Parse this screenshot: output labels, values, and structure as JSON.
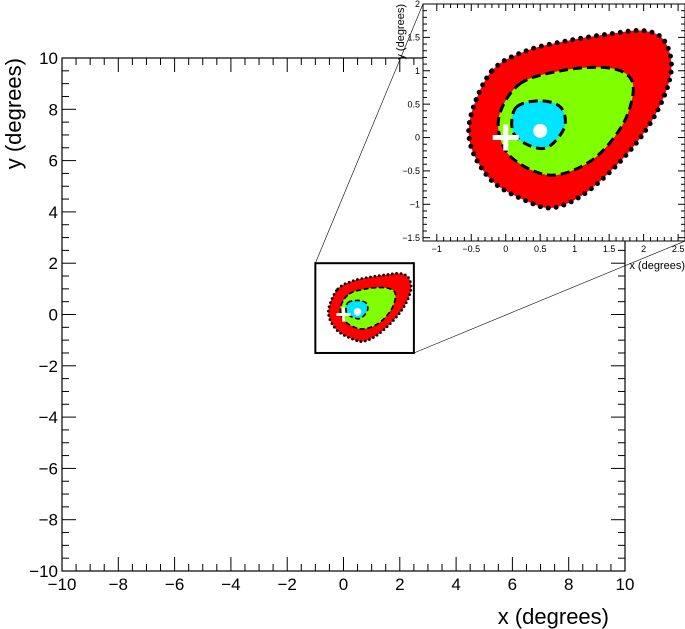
{
  "chart_data": [
    {
      "type": "contour",
      "role": "main",
      "xlabel": "x (degrees)",
      "ylabel": "y (degrees)",
      "xlim": [
        -10,
        10
      ],
      "ylim": [
        -10,
        10
      ],
      "x_ticks": [
        "−10",
        "−8",
        "−6",
        "−4",
        "−2",
        "0",
        "2",
        "4",
        "6",
        "8",
        "10"
      ],
      "y_ticks": [
        "−10",
        "−8",
        "−6",
        "−4",
        "−2",
        "0",
        "2",
        "4",
        "6",
        "8",
        "10"
      ],
      "x_tick_values": [
        -10,
        -8,
        -6,
        -4,
        -2,
        0,
        2,
        4,
        6,
        8,
        10
      ],
      "y_tick_values": [
        -10,
        -8,
        -6,
        -4,
        -2,
        0,
        2,
        4,
        6,
        8,
        10
      ],
      "grid": false,
      "zoom_box": {
        "x": [
          -1,
          2.5
        ],
        "y": [
          -1.5,
          2
        ]
      },
      "regions": [
        {
          "level": "outer",
          "color": "#ff0000",
          "border": "dotted",
          "points": [
            [
              -0.2,
              1.0
            ],
            [
              0.3,
              1.3
            ],
            [
              0.9,
              1.45
            ],
            [
              1.5,
              1.55
            ],
            [
              2.0,
              1.6
            ],
            [
              2.3,
              1.45
            ],
            [
              2.4,
              1.0
            ],
            [
              2.2,
              0.4
            ],
            [
              1.8,
              -0.2
            ],
            [
              1.2,
              -0.8
            ],
            [
              0.7,
              -1.05
            ],
            [
              0.3,
              -0.95
            ],
            [
              -0.2,
              -0.65
            ],
            [
              -0.5,
              -0.15
            ],
            [
              -0.5,
              0.35
            ]
          ]
        },
        {
          "level": "middle",
          "color": "#80ff00",
          "border": "dashed",
          "points": [
            [
              0.2,
              0.8
            ],
            [
              0.8,
              1.0
            ],
            [
              1.4,
              1.05
            ],
            [
              1.75,
              0.95
            ],
            [
              1.85,
              0.7
            ],
            [
              1.7,
              0.2
            ],
            [
              1.3,
              -0.3
            ],
            [
              0.8,
              -0.55
            ],
            [
              0.4,
              -0.5
            ],
            [
              0.0,
              -0.2
            ],
            [
              -0.1,
              0.3
            ]
          ]
        },
        {
          "level": "inner",
          "color": "#00e5ff",
          "border": "dashed",
          "points": [
            [
              0.15,
              0.45
            ],
            [
              0.5,
              0.55
            ],
            [
              0.8,
              0.45
            ],
            [
              0.85,
              0.15
            ],
            [
              0.6,
              -0.15
            ],
            [
              0.3,
              -0.1
            ],
            [
              0.1,
              0.1
            ]
          ]
        }
      ],
      "markers": [
        {
          "type": "circle",
          "color": "#ffffff",
          "x": 0.5,
          "y": 0.1
        },
        {
          "type": "cross",
          "color": "#ffffff",
          "x": 0.0,
          "y": 0.0
        }
      ]
    },
    {
      "type": "contour",
      "role": "inset-zoom",
      "xlabel": "x (degrees)",
      "ylabel": "y (degrees)",
      "xlim": [
        -1.2,
        2.6
      ],
      "ylim": [
        -1.55,
        2.0
      ],
      "x_ticks": [
        "−1",
        "−0.5",
        "0",
        "0.5",
        "1",
        "1.5",
        "2",
        "2.5"
      ],
      "y_ticks": [
        "−1.5",
        "−1",
        "−0.5",
        "0",
        "0.5",
        "1",
        "1.5",
        "2"
      ],
      "x_tick_values": [
        -1,
        -0.5,
        0,
        0.5,
        1,
        1.5,
        2,
        2.5
      ],
      "y_tick_values": [
        -1.5,
        -1,
        -0.5,
        0,
        0.5,
        1,
        1.5,
        2
      ],
      "grid": false
    }
  ]
}
